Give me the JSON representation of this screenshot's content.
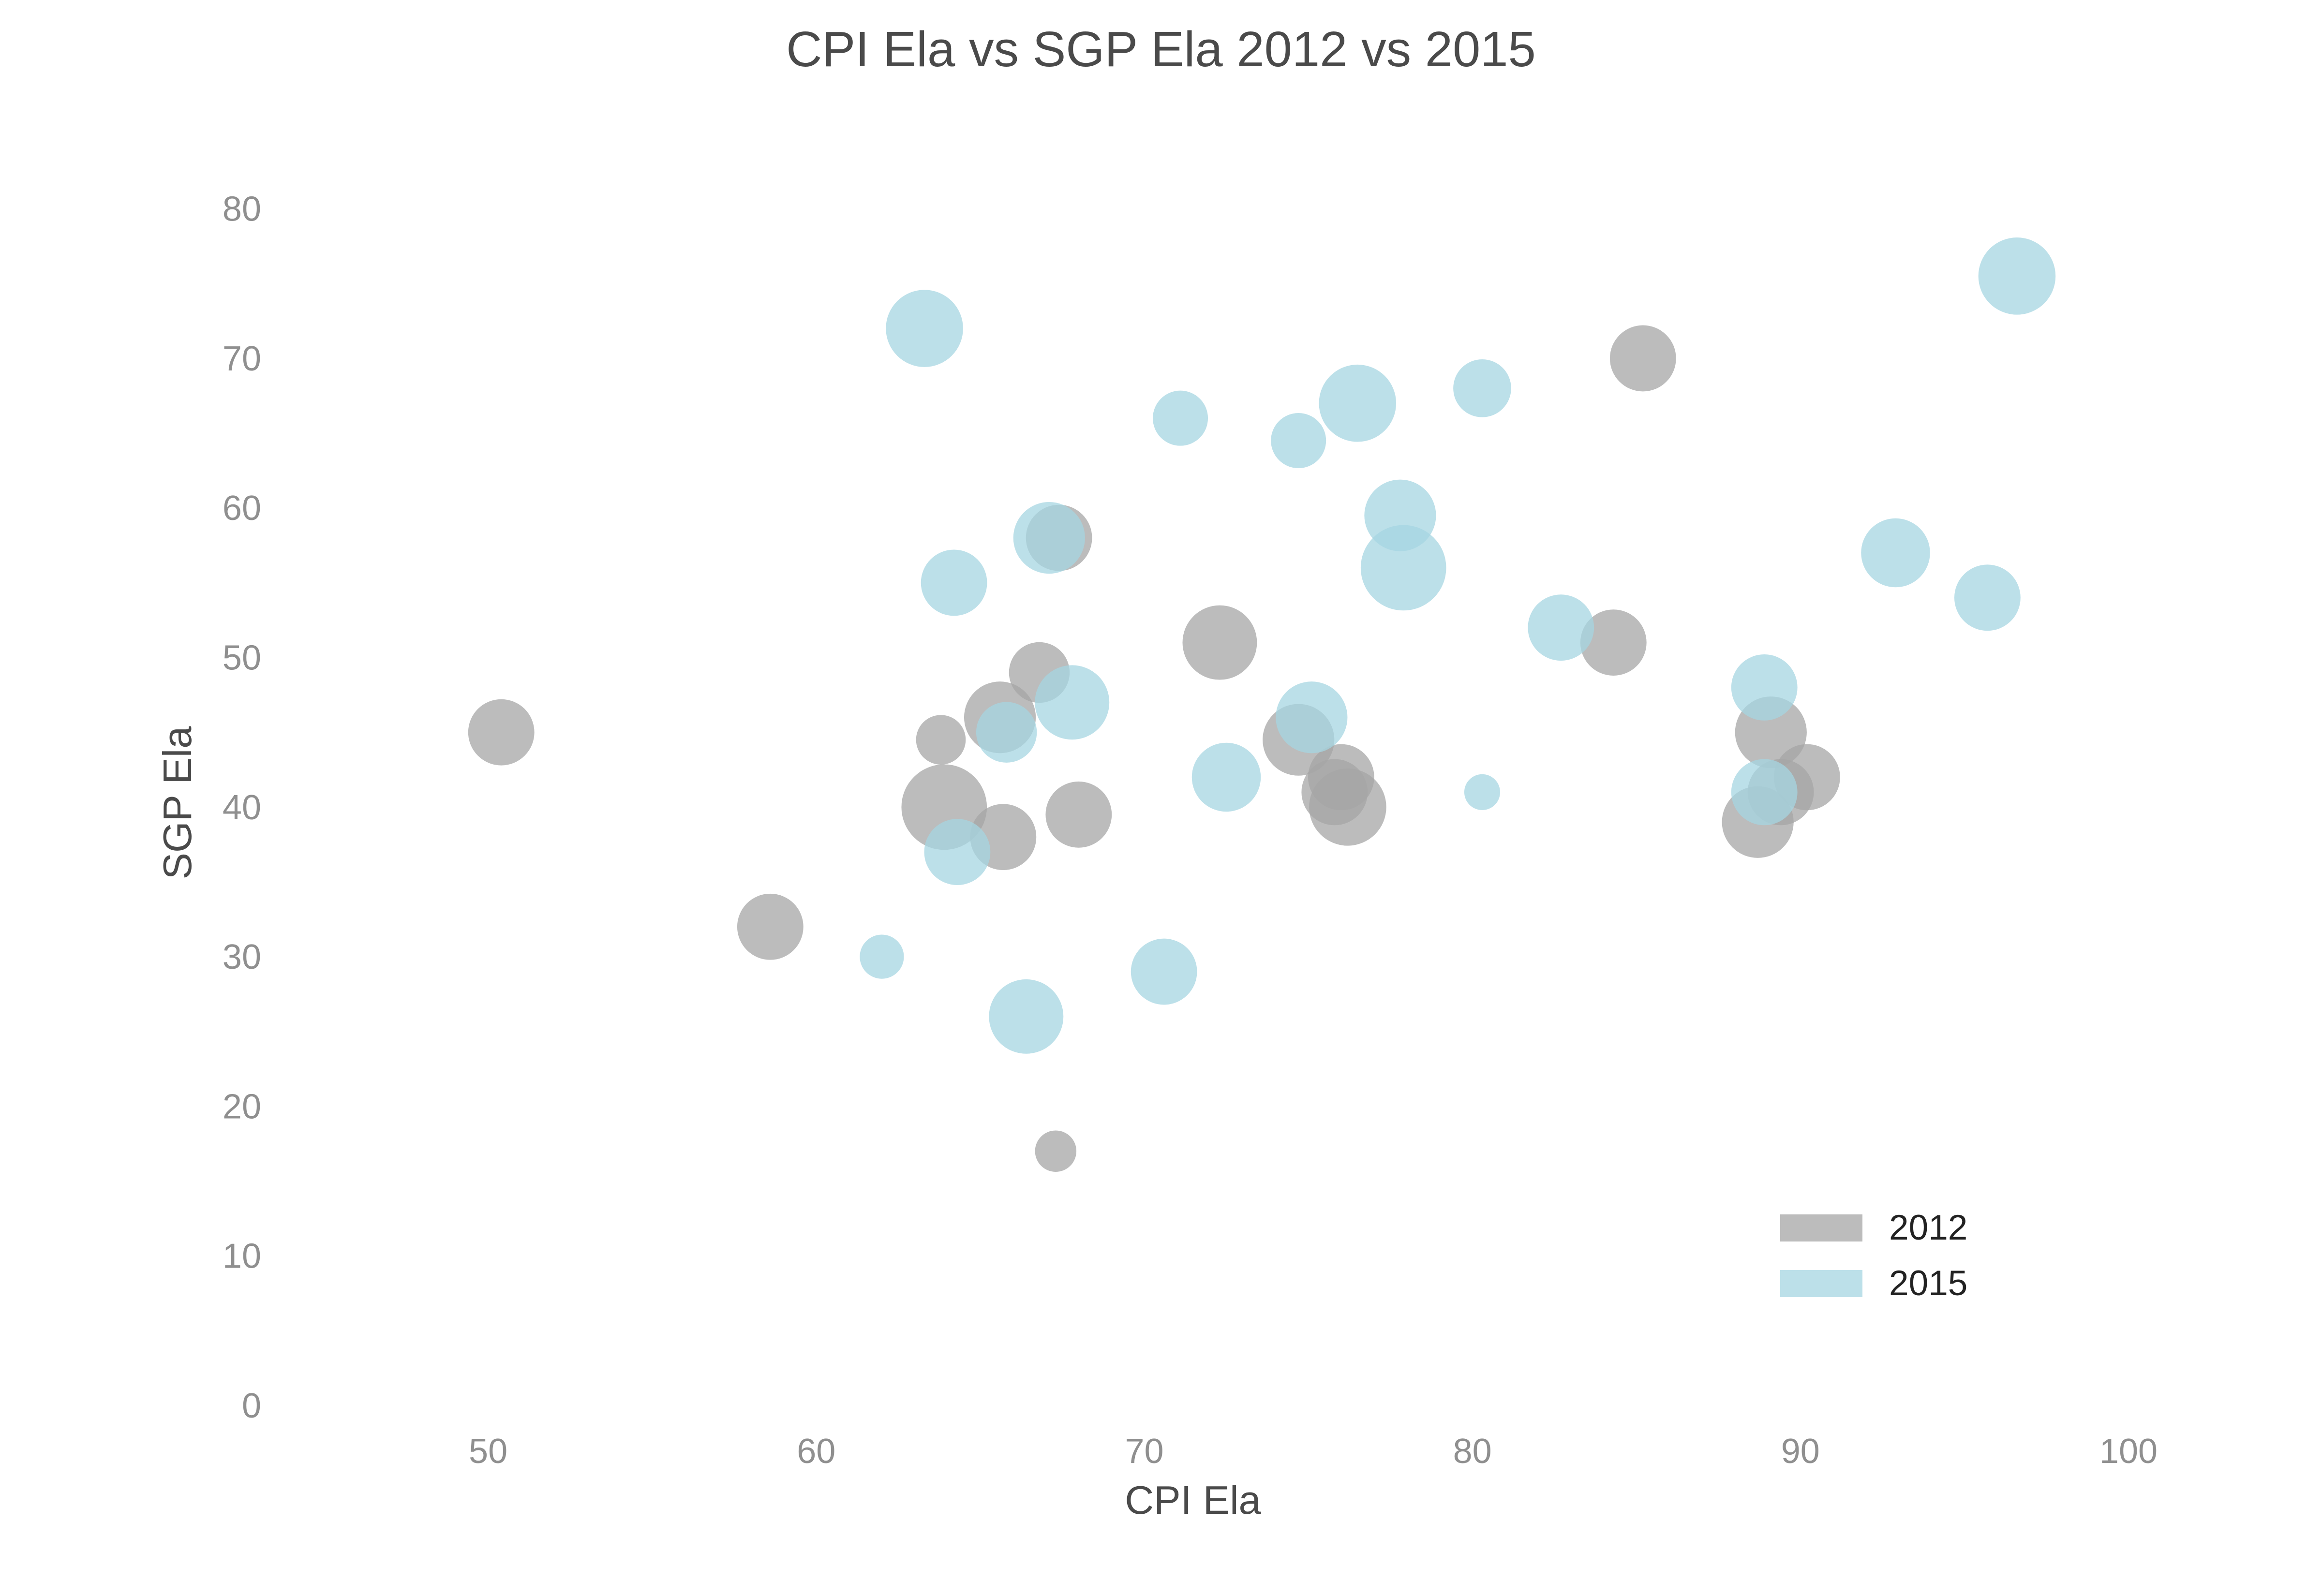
{
  "chart_data": {
    "type": "scatter",
    "title": "CPI Ela vs SGP Ela 2012 vs 2015",
    "xlabel": "CPI Ela",
    "ylabel": "SGP Ela",
    "xlim": [
      45,
      100
    ],
    "ylim": [
      0,
      85
    ],
    "xticks": [
      "50",
      "60",
      "70",
      "80",
      "90",
      "100"
    ],
    "yticks": [
      "0",
      "10",
      "20",
      "30",
      "40",
      "50",
      "60",
      "70",
      "80"
    ],
    "grid": false,
    "legend_position": "bottom-right",
    "series": [
      {
        "name": "2012",
        "color": "#a6a6a6",
        "points": [
          {
            "x": 50.4,
            "y": 45,
            "size": 24
          },
          {
            "x": 58.6,
            "y": 32,
            "size": 24
          },
          {
            "x": 63.8,
            "y": 44.5,
            "size": 18
          },
          {
            "x": 63.9,
            "y": 40,
            "size": 31
          },
          {
            "x": 65.6,
            "y": 46,
            "size": 26
          },
          {
            "x": 65.7,
            "y": 38,
            "size": 24
          },
          {
            "x": 66.8,
            "y": 49,
            "size": 22
          },
          {
            "x": 67.3,
            "y": 17,
            "size": 15
          },
          {
            "x": 67.4,
            "y": 58,
            "size": 24
          },
          {
            "x": 68.0,
            "y": 39.5,
            "size": 24
          },
          {
            "x": 72.3,
            "y": 51,
            "size": 27
          },
          {
            "x": 74.7,
            "y": 44.5,
            "size": 26
          },
          {
            "x": 75.8,
            "y": 41,
            "size": 24
          },
          {
            "x": 76.0,
            "y": 42,
            "size": 24
          },
          {
            "x": 76.2,
            "y": 40,
            "size": 28
          },
          {
            "x": 84.3,
            "y": 51,
            "size": 24
          },
          {
            "x": 85.2,
            "y": 70,
            "size": 24
          },
          {
            "x": 88.7,
            "y": 39,
            "size": 26
          },
          {
            "x": 89.1,
            "y": 45,
            "size": 26
          },
          {
            "x": 89.4,
            "y": 41,
            "size": 24
          },
          {
            "x": 90.2,
            "y": 42,
            "size": 24
          }
        ]
      },
      {
        "name": "2015",
        "color": "#a5d6e2",
        "points": [
          {
            "x": 62.0,
            "y": 30,
            "size": 16
          },
          {
            "x": 63.3,
            "y": 72,
            "size": 28
          },
          {
            "x": 64.2,
            "y": 55,
            "size": 24
          },
          {
            "x": 64.3,
            "y": 37,
            "size": 24
          },
          {
            "x": 65.8,
            "y": 45,
            "size": 22
          },
          {
            "x": 66.4,
            "y": 26,
            "size": 27
          },
          {
            "x": 67.1,
            "y": 58,
            "size": 26
          },
          {
            "x": 67.8,
            "y": 47,
            "size": 27
          },
          {
            "x": 70.6,
            "y": 29,
            "size": 24
          },
          {
            "x": 71.1,
            "y": 66,
            "size": 20
          },
          {
            "x": 72.5,
            "y": 42,
            "size": 25
          },
          {
            "x": 74.7,
            "y": 64.5,
            "size": 20
          },
          {
            "x": 75.1,
            "y": 46,
            "size": 26
          },
          {
            "x": 76.5,
            "y": 67,
            "size": 28
          },
          {
            "x": 77.8,
            "y": 59.5,
            "size": 26
          },
          {
            "x": 77.9,
            "y": 56,
            "size": 31
          },
          {
            "x": 80.3,
            "y": 68,
            "size": 21
          },
          {
            "x": 80.3,
            "y": 41,
            "size": 13
          },
          {
            "x": 82.7,
            "y": 52,
            "size": 24
          },
          {
            "x": 88.9,
            "y": 48,
            "size": 24
          },
          {
            "x": 88.9,
            "y": 41,
            "size": 24
          },
          {
            "x": 92.9,
            "y": 57,
            "size": 25
          },
          {
            "x": 95.7,
            "y": 54,
            "size": 24
          },
          {
            "x": 96.6,
            "y": 75.5,
            "size": 28
          }
        ]
      }
    ]
  }
}
